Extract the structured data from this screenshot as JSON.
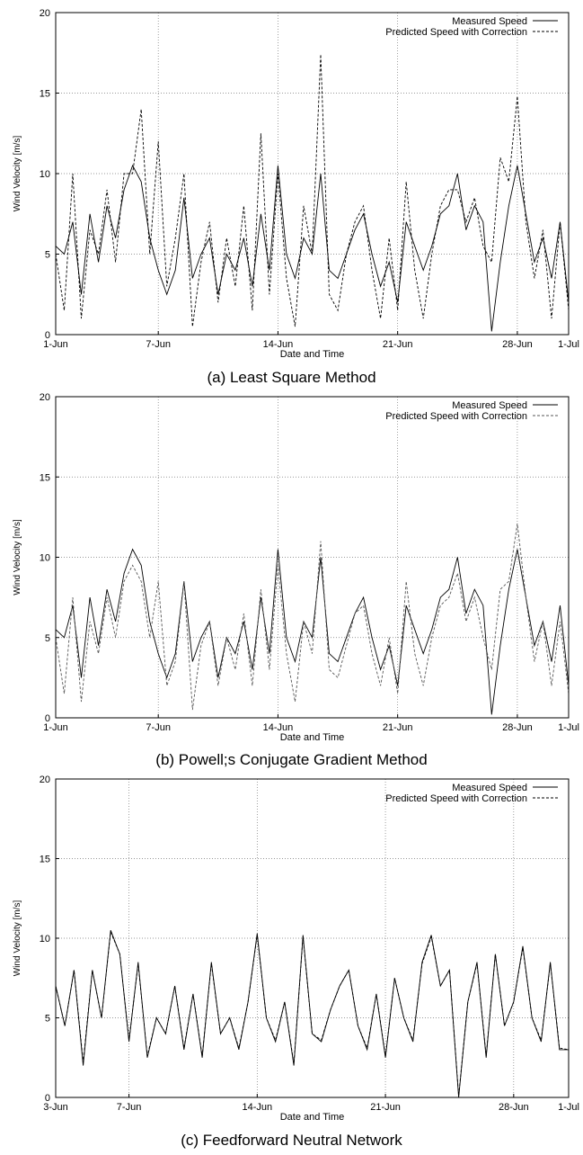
{
  "chart_data": [
    {
      "type": "line",
      "caption": "(a) Least Square Method",
      "xlabel": "Date and Time",
      "ylabel": "Wind Velocity [m/s]",
      "ylim": [
        0,
        20
      ],
      "yticks": [
        0,
        5,
        10,
        15,
        20
      ],
      "xlim": [
        "2010-06-01",
        "2010-07-01"
      ],
      "xticks": [
        {
          "date": "2010-06-01",
          "label": "1-Jun"
        },
        {
          "date": "2010-06-07",
          "label": "7-Jun"
        },
        {
          "date": "2010-06-14",
          "label": "14-Jun"
        },
        {
          "date": "2010-06-21",
          "label": "21-Jun"
        },
        {
          "date": "2010-06-28",
          "label": "28-Jun"
        },
        {
          "date": "2010-07-01",
          "label": "1-Jul"
        }
      ],
      "grid": true,
      "legend": "top-right",
      "series": [
        {
          "name": "Measured Speed",
          "style": "solid",
          "color": "#000000",
          "x": [
            "2010-06-01",
            "2010-06-01T12",
            "2010-06-02",
            "2010-06-02T12",
            "2010-06-03",
            "2010-06-03T12",
            "2010-06-04",
            "2010-06-04T12",
            "2010-06-05",
            "2010-06-05T12",
            "2010-06-06",
            "2010-06-06T12",
            "2010-06-07",
            "2010-06-07T12",
            "2010-06-08",
            "2010-06-08T12",
            "2010-06-09",
            "2010-06-09T12",
            "2010-06-10",
            "2010-06-10T12",
            "2010-06-11",
            "2010-06-11T12",
            "2010-06-12",
            "2010-06-12T12",
            "2010-06-13",
            "2010-06-13T12",
            "2010-06-14",
            "2010-06-14T12",
            "2010-06-15",
            "2010-06-15T12",
            "2010-06-16",
            "2010-06-16T12",
            "2010-06-17",
            "2010-06-17T12",
            "2010-06-18",
            "2010-06-18T12",
            "2010-06-19",
            "2010-06-19T12",
            "2010-06-20",
            "2010-06-20T12",
            "2010-06-21",
            "2010-06-21T12",
            "2010-06-22",
            "2010-06-22T12",
            "2010-06-23",
            "2010-06-23T12",
            "2010-06-24",
            "2010-06-24T12",
            "2010-06-25",
            "2010-06-25T12",
            "2010-06-26",
            "2010-06-26T12",
            "2010-06-27",
            "2010-06-27T12",
            "2010-06-28",
            "2010-06-28T12",
            "2010-06-29",
            "2010-06-29T12",
            "2010-06-30",
            "2010-06-30T12",
            "2010-07-01"
          ],
          "y": [
            5.5,
            5.0,
            7.0,
            2.5,
            7.5,
            4.5,
            8.0,
            6.0,
            9.0,
            10.5,
            9.5,
            6.0,
            4.0,
            2.5,
            4.0,
            8.5,
            3.5,
            5.0,
            6.0,
            2.5,
            5.0,
            4.0,
            6.0,
            3.0,
            7.5,
            4.0,
            10.5,
            5.0,
            3.5,
            6.0,
            5.0,
            10.0,
            4.0,
            3.5,
            5.0,
            6.5,
            7.5,
            5.0,
            3.0,
            4.5,
            2.0,
            7.0,
            5.5,
            4.0,
            5.5,
            7.5,
            8.0,
            10.0,
            6.5,
            8.0,
            7.0,
            0.2,
            4.5,
            8.0,
            10.5,
            7.5,
            4.5,
            6.0,
            3.5,
            7.0,
            2.0
          ]
        },
        {
          "name": "Predicted Speed with Correction",
          "style": "dashed",
          "color": "#000000",
          "x": [
            "2010-06-01",
            "2010-06-01T12",
            "2010-06-02",
            "2010-06-02T12",
            "2010-06-03",
            "2010-06-03T12",
            "2010-06-04",
            "2010-06-04T12",
            "2010-06-05",
            "2010-06-05T12",
            "2010-06-06",
            "2010-06-06T12",
            "2010-06-07",
            "2010-06-07T12",
            "2010-06-08",
            "2010-06-08T12",
            "2010-06-09",
            "2010-06-09T12",
            "2010-06-10",
            "2010-06-10T12",
            "2010-06-11",
            "2010-06-11T12",
            "2010-06-12",
            "2010-06-12T12",
            "2010-06-13",
            "2010-06-13T12",
            "2010-06-14",
            "2010-06-14T12",
            "2010-06-15",
            "2010-06-15T12",
            "2010-06-16",
            "2010-06-16T12",
            "2010-06-17",
            "2010-06-17T12",
            "2010-06-18",
            "2010-06-18T12",
            "2010-06-19",
            "2010-06-19T12",
            "2010-06-20",
            "2010-06-20T12",
            "2010-06-21",
            "2010-06-21T12",
            "2010-06-22",
            "2010-06-22T12",
            "2010-06-23",
            "2010-06-23T12",
            "2010-06-24",
            "2010-06-24T12",
            "2010-06-25",
            "2010-06-25T12",
            "2010-06-26",
            "2010-06-26T12",
            "2010-06-27",
            "2010-06-27T12",
            "2010-06-28",
            "2010-06-28T12",
            "2010-06-29",
            "2010-06-29T12",
            "2010-06-30",
            "2010-06-30T12",
            "2010-07-01"
          ],
          "y": [
            5.0,
            1.5,
            10.0,
            1.0,
            6.5,
            5.0,
            9.0,
            4.5,
            10.0,
            10.0,
            14.0,
            5.0,
            12.0,
            3.0,
            6.0,
            10.0,
            0.5,
            4.5,
            7.0,
            2.0,
            6.0,
            3.0,
            8.0,
            1.5,
            12.5,
            2.5,
            10.0,
            3.5,
            0.5,
            8.0,
            5.0,
            17.4,
            2.5,
            1.5,
            5.0,
            7.0,
            8.0,
            4.0,
            1.0,
            6.0,
            1.5,
            9.5,
            4.0,
            1.0,
            5.0,
            8.0,
            9.0,
            9.0,
            7.0,
            8.5,
            5.5,
            4.5,
            11.0,
            9.5,
            14.8,
            7.0,
            3.5,
            6.5,
            1.0,
            7.0,
            1.5
          ]
        }
      ]
    },
    {
      "type": "line",
      "caption": "(b) Powell;s Conjugate Gradient Method",
      "xlabel": "Date and Time",
      "ylabel": "Wind Velocity [m/s]",
      "ylim": [
        0,
        20
      ],
      "yticks": [
        0,
        5,
        10,
        15,
        20
      ],
      "xlim": [
        "2010-06-01",
        "2010-07-01"
      ],
      "xticks": [
        {
          "date": "2010-06-01",
          "label": "1-Jun"
        },
        {
          "date": "2010-06-07",
          "label": "7-Jun"
        },
        {
          "date": "2010-06-14",
          "label": "14-Jun"
        },
        {
          "date": "2010-06-21",
          "label": "21-Jun"
        },
        {
          "date": "2010-06-28",
          "label": "28-Jun"
        },
        {
          "date": "2010-07-01",
          "label": "1-Jul"
        }
      ],
      "grid": true,
      "legend": "top-right",
      "series": [
        {
          "name": "Measured Speed",
          "style": "solid",
          "color": "#000000",
          "x": [
            "2010-06-01",
            "2010-06-01T12",
            "2010-06-02",
            "2010-06-02T12",
            "2010-06-03",
            "2010-06-03T12",
            "2010-06-04",
            "2010-06-04T12",
            "2010-06-05",
            "2010-06-05T12",
            "2010-06-06",
            "2010-06-06T12",
            "2010-06-07",
            "2010-06-07T12",
            "2010-06-08",
            "2010-06-08T12",
            "2010-06-09",
            "2010-06-09T12",
            "2010-06-10",
            "2010-06-10T12",
            "2010-06-11",
            "2010-06-11T12",
            "2010-06-12",
            "2010-06-12T12",
            "2010-06-13",
            "2010-06-13T12",
            "2010-06-14",
            "2010-06-14T12",
            "2010-06-15",
            "2010-06-15T12",
            "2010-06-16",
            "2010-06-16T12",
            "2010-06-17",
            "2010-06-17T12",
            "2010-06-18",
            "2010-06-18T12",
            "2010-06-19",
            "2010-06-19T12",
            "2010-06-20",
            "2010-06-20T12",
            "2010-06-21",
            "2010-06-21T12",
            "2010-06-22",
            "2010-06-22T12",
            "2010-06-23",
            "2010-06-23T12",
            "2010-06-24",
            "2010-06-24T12",
            "2010-06-25",
            "2010-06-25T12",
            "2010-06-26",
            "2010-06-26T12",
            "2010-06-27",
            "2010-06-27T12",
            "2010-06-28",
            "2010-06-28T12",
            "2010-06-29",
            "2010-06-29T12",
            "2010-06-30",
            "2010-06-30T12",
            "2010-07-01"
          ],
          "y": [
            5.5,
            5.0,
            7.0,
            2.5,
            7.5,
            4.5,
            8.0,
            6.0,
            9.0,
            10.5,
            9.5,
            6.0,
            4.0,
            2.5,
            4.0,
            8.5,
            3.5,
            5.0,
            6.0,
            2.5,
            5.0,
            4.0,
            6.0,
            3.0,
            7.5,
            4.0,
            10.5,
            5.0,
            3.5,
            6.0,
            5.0,
            10.0,
            4.0,
            3.5,
            5.0,
            6.5,
            7.5,
            5.0,
            3.0,
            4.5,
            2.0,
            7.0,
            5.5,
            4.0,
            5.5,
            7.5,
            8.0,
            10.0,
            6.5,
            8.0,
            7.0,
            0.2,
            4.5,
            8.0,
            10.5,
            7.5,
            4.5,
            6.0,
            3.5,
            7.0,
            2.0
          ]
        },
        {
          "name": "Predicted Speed with Correction",
          "style": "dashed",
          "color": "#555555",
          "x": [
            "2010-06-01",
            "2010-06-01T12",
            "2010-06-02",
            "2010-06-02T12",
            "2010-06-03",
            "2010-06-03T12",
            "2010-06-04",
            "2010-06-04T12",
            "2010-06-05",
            "2010-06-05T12",
            "2010-06-06",
            "2010-06-06T12",
            "2010-06-07",
            "2010-06-07T12",
            "2010-06-08",
            "2010-06-08T12",
            "2010-06-09",
            "2010-06-09T12",
            "2010-06-10",
            "2010-06-10T12",
            "2010-06-11",
            "2010-06-11T12",
            "2010-06-12",
            "2010-06-12T12",
            "2010-06-13",
            "2010-06-13T12",
            "2010-06-14",
            "2010-06-14T12",
            "2010-06-15",
            "2010-06-15T12",
            "2010-06-16",
            "2010-06-16T12",
            "2010-06-17",
            "2010-06-17T12",
            "2010-06-18",
            "2010-06-18T12",
            "2010-06-19",
            "2010-06-19T12",
            "2010-06-20",
            "2010-06-20T12",
            "2010-06-21",
            "2010-06-21T12",
            "2010-06-22",
            "2010-06-22T12",
            "2010-06-23",
            "2010-06-23T12",
            "2010-06-24",
            "2010-06-24T12",
            "2010-06-25",
            "2010-06-25T12",
            "2010-06-26",
            "2010-06-26T12",
            "2010-06-27",
            "2010-06-27T12",
            "2010-06-28",
            "2010-06-28T12",
            "2010-06-29",
            "2010-06-29T12",
            "2010-06-30",
            "2010-06-30T12",
            "2010-07-01"
          ],
          "y": [
            5.0,
            1.5,
            7.5,
            1.0,
            6.0,
            4.0,
            7.5,
            5.0,
            8.5,
            9.5,
            8.5,
            5.0,
            8.5,
            2.0,
            3.5,
            8.5,
            0.5,
            4.5,
            6.0,
            2.0,
            5.0,
            3.0,
            6.5,
            2.0,
            8.0,
            3.0,
            9.5,
            4.0,
            1.0,
            6.0,
            4.0,
            11.0,
            3.0,
            2.5,
            4.5,
            6.5,
            7.0,
            4.0,
            2.0,
            5.0,
            1.5,
            8.5,
            4.0,
            2.0,
            5.0,
            7.0,
            7.5,
            9.0,
            6.0,
            7.5,
            5.0,
            3.0,
            8.0,
            8.5,
            12.1,
            7.5,
            3.5,
            6.0,
            2.0,
            6.0,
            1.5
          ]
        }
      ]
    },
    {
      "type": "line",
      "caption": "(c) Feedforward Neutral Network",
      "xlabel": "Date and Time",
      "ylabel": "Wind Velocity [m/s]",
      "ylim": [
        0,
        20
      ],
      "yticks": [
        0,
        5,
        10,
        15,
        20
      ],
      "xlim": [
        "2010-06-03",
        "2010-07-01"
      ],
      "xticks": [
        {
          "date": "2010-06-03",
          "label": "3-Jun"
        },
        {
          "date": "2010-06-07",
          "label": "7-Jun"
        },
        {
          "date": "2010-06-14",
          "label": "14-Jun"
        },
        {
          "date": "2010-06-21",
          "label": "21-Jun"
        },
        {
          "date": "2010-06-28",
          "label": "28-Jun"
        },
        {
          "date": "2010-07-01",
          "label": "1-Jul"
        }
      ],
      "grid": true,
      "legend": "top-right",
      "series": [
        {
          "name": "Measured Speed",
          "style": "solid",
          "color": "#000000",
          "x": [
            "2010-06-03",
            "2010-06-03T12",
            "2010-06-04",
            "2010-06-04T12",
            "2010-06-05",
            "2010-06-05T12",
            "2010-06-06",
            "2010-06-06T12",
            "2010-06-07",
            "2010-06-07T12",
            "2010-06-08",
            "2010-06-08T12",
            "2010-06-09",
            "2010-06-09T12",
            "2010-06-10",
            "2010-06-10T12",
            "2010-06-11",
            "2010-06-11T12",
            "2010-06-12",
            "2010-06-12T12",
            "2010-06-13",
            "2010-06-13T12",
            "2010-06-14",
            "2010-06-14T12",
            "2010-06-15",
            "2010-06-15T12",
            "2010-06-16",
            "2010-06-16T12",
            "2010-06-17",
            "2010-06-17T12",
            "2010-06-18",
            "2010-06-18T12",
            "2010-06-19",
            "2010-06-19T12",
            "2010-06-20",
            "2010-06-20T12",
            "2010-06-21",
            "2010-06-21T12",
            "2010-06-22",
            "2010-06-22T12",
            "2010-06-23",
            "2010-06-23T12",
            "2010-06-24",
            "2010-06-24T12",
            "2010-06-25",
            "2010-06-25T12",
            "2010-06-26",
            "2010-06-26T12",
            "2010-06-27",
            "2010-06-27T12",
            "2010-06-28",
            "2010-06-28T12",
            "2010-06-29",
            "2010-06-29T12",
            "2010-06-30",
            "2010-06-30T12",
            "2010-07-01"
          ],
          "y": [
            7.0,
            4.5,
            8.0,
            2.0,
            8.0,
            5.0,
            10.5,
            9.0,
            3.5,
            8.5,
            2.5,
            5.0,
            4.0,
            7.0,
            3.0,
            6.5,
            2.5,
            8.5,
            4.0,
            5.0,
            3.0,
            6.0,
            10.3,
            5.0,
            3.5,
            6.0,
            2.0,
            10.2,
            4.0,
            3.5,
            5.5,
            7.0,
            8.0,
            4.5,
            3.0,
            6.5,
            2.5,
            7.5,
            5.0,
            3.5,
            8.5,
            10.2,
            7.0,
            8.0,
            0.0,
            6.0,
            8.5,
            2.5,
            9.0,
            4.5,
            6.0,
            9.5,
            5.0,
            3.5,
            8.5,
            3.0,
            3.0
          ]
        },
        {
          "name": "Predicted Speed with Correction",
          "style": "dashed",
          "color": "#000000",
          "x": [
            "2010-06-03",
            "2010-06-03T12",
            "2010-06-04",
            "2010-06-04T12",
            "2010-06-05",
            "2010-06-05T12",
            "2010-06-06",
            "2010-06-06T12",
            "2010-06-07",
            "2010-06-07T12",
            "2010-06-08",
            "2010-06-08T12",
            "2010-06-09",
            "2010-06-09T12",
            "2010-06-10",
            "2010-06-10T12",
            "2010-06-11",
            "2010-06-11T12",
            "2010-06-12",
            "2010-06-12T12",
            "2010-06-13",
            "2010-06-13T12",
            "2010-06-14",
            "2010-06-14T12",
            "2010-06-15",
            "2010-06-15T12",
            "2010-06-16",
            "2010-06-16T12",
            "2010-06-17",
            "2010-06-17T12",
            "2010-06-18",
            "2010-06-18T12",
            "2010-06-19",
            "2010-06-19T12",
            "2010-06-20",
            "2010-06-20T12",
            "2010-06-21",
            "2010-06-21T12",
            "2010-06-22",
            "2010-06-22T12",
            "2010-06-23",
            "2010-06-23T12",
            "2010-06-24",
            "2010-06-24T12",
            "2010-06-25",
            "2010-06-25T12",
            "2010-06-26",
            "2010-06-26T12",
            "2010-06-27",
            "2010-06-27T12",
            "2010-06-28",
            "2010-06-28T12",
            "2010-06-29",
            "2010-06-29T12",
            "2010-06-30",
            "2010-06-30T12",
            "2010-07-01"
          ],
          "y": [
            7.0,
            4.5,
            8.0,
            2.2,
            8.0,
            5.0,
            10.4,
            9.0,
            3.6,
            8.4,
            2.6,
            5.0,
            4.0,
            7.0,
            3.1,
            6.5,
            2.6,
            8.4,
            4.0,
            5.0,
            3.1,
            6.0,
            10.2,
            5.0,
            3.6,
            6.0,
            2.1,
            10.1,
            4.0,
            3.6,
            5.5,
            7.0,
            8.0,
            4.5,
            3.1,
            6.5,
            2.6,
            7.5,
            5.0,
            3.6,
            8.4,
            10.1,
            7.0,
            8.0,
            0.1,
            6.0,
            8.4,
            2.6,
            9.0,
            4.5,
            6.0,
            9.4,
            5.0,
            3.6,
            8.4,
            3.1,
            3.0
          ]
        }
      ]
    }
  ]
}
